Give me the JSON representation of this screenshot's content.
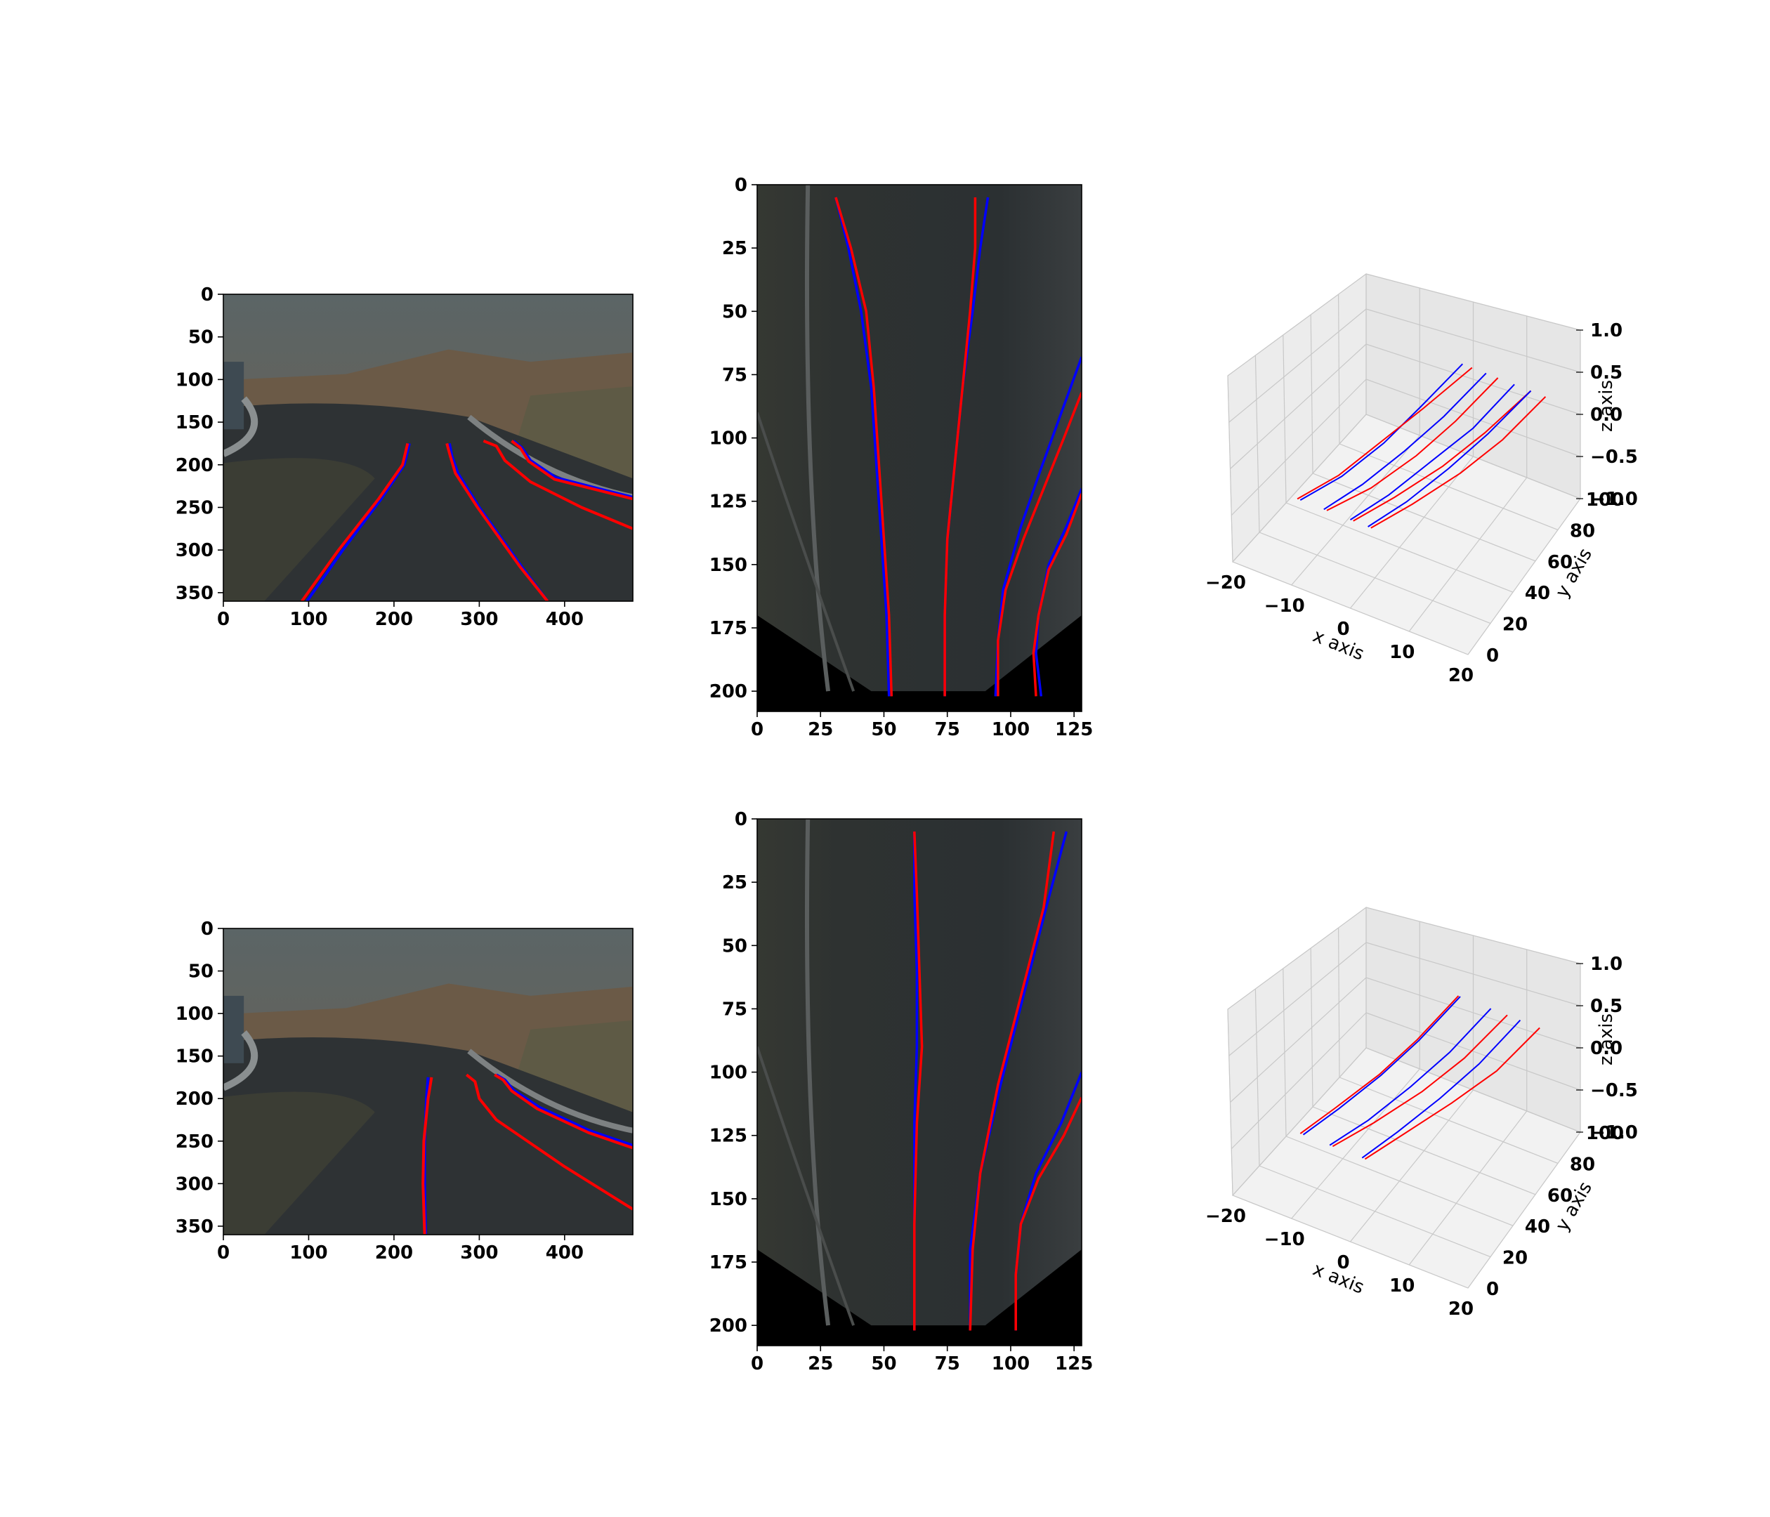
{
  "colors": {
    "gt": "#0000ff",
    "pred": "#ff0000",
    "sky_top": "#5d6766",
    "sky_bottom": "#6f5f4f",
    "mountain": "#6b5a47",
    "road": "#2e3234",
    "ground": "#3b3d34",
    "bev_bg": "#2b2f30",
    "pane": "#f2f2f2"
  },
  "chart_data": [
    {
      "type": "image",
      "panel": "row1-camera",
      "x_ticks": [
        "0",
        "100",
        "200",
        "300",
        "400"
      ],
      "y_ticks": [
        "0",
        "50",
        "100",
        "150",
        "200",
        "250",
        "300",
        "350"
      ],
      "xlim": [
        0,
        480
      ],
      "ylim": [
        360,
        0
      ],
      "series": [
        {
          "name": "",
          "color": "gt",
          "x": [
            98,
            140,
            185,
            212,
            218
          ],
          "y": [
            360,
            300,
            240,
            200,
            175
          ]
        },
        {
          "name": "",
          "color": "pred",
          "x": [
            92,
            135,
            182,
            210,
            216
          ],
          "y": [
            360,
            300,
            240,
            200,
            175
          ]
        },
        {
          "name": "",
          "color": "gt",
          "x": [
            265,
            268,
            275,
            300,
            350,
            380
          ],
          "y": [
            175,
            190,
            210,
            250,
            320,
            360
          ]
        },
        {
          "name": "",
          "color": "pred",
          "x": [
            262,
            266,
            272,
            298,
            348,
            380
          ],
          "y": [
            175,
            190,
            210,
            250,
            320,
            360
          ]
        },
        {
          "name": "",
          "color": "pred",
          "x": [
            305,
            320,
            330,
            360,
            420,
            480
          ],
          "y": [
            172,
            178,
            195,
            220,
            250,
            275
          ]
        },
        {
          "name": "",
          "color": "gt",
          "x": [
            340,
            350,
            360,
            390,
            440,
            480
          ],
          "y": [
            172,
            180,
            195,
            215,
            228,
            238
          ]
        },
        {
          "name": "",
          "color": "pred",
          "x": [
            338,
            348,
            358,
            388,
            440,
            480
          ],
          "y": [
            172,
            180,
            196,
            217,
            230,
            240
          ]
        }
      ]
    },
    {
      "type": "image",
      "panel": "row1-bev",
      "x_ticks": [
        "0",
        "25",
        "50",
        "75",
        "100",
        "125"
      ],
      "y_ticks": [
        "0",
        "25",
        "50",
        "75",
        "100",
        "125",
        "150",
        "175",
        "200"
      ],
      "xlim": [
        0,
        128
      ],
      "ylim": [
        208,
        0
      ],
      "series": [
        {
          "name": "",
          "color": "gt",
          "x": [
            31,
            36,
            41,
            45,
            47,
            49,
            51,
            52
          ],
          "y": [
            5,
            25,
            50,
            80,
            110,
            140,
            170,
            202
          ]
        },
        {
          "name": "",
          "color": "pred",
          "x": [
            31,
            37,
            43,
            46,
            48,
            50,
            52,
            53
          ],
          "y": [
            5,
            25,
            50,
            80,
            110,
            140,
            170,
            202
          ]
        },
        {
          "name": "",
          "color": "gt",
          "x": [
            91,
            88,
            85,
            81,
            78,
            75,
            74,
            74
          ],
          "y": [
            5,
            25,
            50,
            80,
            110,
            140,
            170,
            202
          ]
        },
        {
          "name": "",
          "color": "pred",
          "x": [
            86,
            86,
            84,
            81,
            78,
            75,
            74,
            74
          ],
          "y": [
            5,
            25,
            50,
            80,
            110,
            140,
            170,
            202
          ]
        },
        {
          "name": "",
          "color": "gt",
          "x": [
            128,
            120,
            112,
            104,
            97,
            95,
            94
          ],
          "y": [
            68,
            90,
            112,
            135,
            160,
            180,
            202
          ]
        },
        {
          "name": "",
          "color": "pred",
          "x": [
            128,
            121,
            113,
            105,
            98,
            95,
            95
          ],
          "y": [
            82,
            100,
            120,
            140,
            160,
            180,
            202
          ]
        },
        {
          "name": "",
          "color": "gt",
          "x": [
            128,
            122,
            115,
            111,
            110,
            112
          ],
          "y": [
            120,
            135,
            150,
            170,
            185,
            202
          ]
        },
        {
          "name": "",
          "color": "pred",
          "x": [
            128,
            122,
            115,
            111,
            109,
            110
          ],
          "y": [
            122,
            138,
            152,
            170,
            185,
            202
          ]
        }
      ]
    },
    {
      "type": "line3d",
      "panel": "row1-3d",
      "x_ticks": [
        "−20",
        "−10",
        "0",
        "10",
        "20"
      ],
      "y_ticks": [
        "0",
        "20",
        "40",
        "60",
        "80",
        "100"
      ],
      "z_ticks": [
        "−1.0",
        "−0.5",
        "0.0",
        "0.5",
        "1.0"
      ],
      "xlabel": "x axis",
      "ylabel": "y axis",
      "zlabel": "z axis",
      "xlim": [
        -20,
        20
      ],
      "ylim": [
        0,
        100
      ],
      "zlim": [
        -1,
        1
      ],
      "series": [
        {
          "name": "",
          "color": "gt",
          "x": [
            -8.5,
            -6,
            -4.5,
            -4,
            -3.6
          ],
          "y": [
            0,
            20,
            45,
            70,
            100
          ],
          "z": [
            0,
            0,
            0,
            0,
            0
          ]
        },
        {
          "name": "",
          "color": "pred",
          "x": [
            -9,
            -6.5,
            -5,
            -3.5,
            -2
          ],
          "y": [
            0,
            20,
            45,
            70,
            100
          ],
          "z": [
            0,
            0,
            0,
            0,
            0
          ]
        },
        {
          "name": "",
          "color": "gt",
          "x": [
            -4.5,
            -2.5,
            -1,
            0,
            0.4
          ],
          "y": [
            0,
            20,
            45,
            70,
            100
          ],
          "z": [
            0,
            0,
            0,
            0,
            0
          ]
        },
        {
          "name": "",
          "color": "pred",
          "x": [
            -4,
            -1,
            1,
            2,
            2.4
          ],
          "y": [
            0,
            20,
            45,
            70,
            100
          ],
          "z": [
            0,
            0,
            0,
            0,
            0
          ]
        },
        {
          "name": "",
          "color": "gt",
          "x": [
            0,
            2,
            3.5,
            5,
            5.2
          ],
          "y": [
            0,
            20,
            45,
            70,
            100
          ],
          "z": [
            0,
            0,
            0,
            0,
            0
          ]
        },
        {
          "name": "",
          "color": "pred",
          "x": [
            0.5,
            3,
            5.5,
            7,
            8
          ],
          "y": [
            0,
            20,
            45,
            70,
            100
          ],
          "z": [
            0,
            0,
            0,
            0,
            0
          ]
        },
        {
          "name": "",
          "color": "gt",
          "x": [
            3,
            5,
            6.5,
            7.5,
            8
          ],
          "y": [
            0,
            20,
            45,
            70,
            100
          ],
          "z": [
            0,
            0,
            0,
            0,
            0
          ]
        },
        {
          "name": "",
          "color": "pred",
          "x": [
            3.5,
            6,
            8.5,
            10,
            10.5
          ],
          "y": [
            0,
            20,
            45,
            70,
            100
          ],
          "z": [
            0,
            0,
            0,
            0,
            0
          ]
        }
      ]
    },
    {
      "type": "image",
      "panel": "row2-camera",
      "x_ticks": [
        "0",
        "100",
        "200",
        "300",
        "400"
      ],
      "y_ticks": [
        "0",
        "50",
        "100",
        "150",
        "200",
        "250",
        "300",
        "350"
      ],
      "xlim": [
        0,
        480
      ],
      "ylim": [
        360,
        0
      ],
      "series": [
        {
          "name": "",
          "color": "gt",
          "x": [
            240,
            238,
            236,
            236,
            237
          ],
          "y": [
            175,
            200,
            250,
            300,
            360
          ]
        },
        {
          "name": "",
          "color": "pred",
          "x": [
            244,
            240,
            235,
            234,
            236
          ],
          "y": [
            175,
            200,
            250,
            300,
            360
          ]
        },
        {
          "name": "",
          "color": "pred",
          "x": [
            285,
            295,
            300,
            320,
            400,
            480
          ],
          "y": [
            172,
            180,
            200,
            225,
            280,
            330
          ]
        },
        {
          "name": "",
          "color": "gt",
          "x": [
            320,
            330,
            340,
            370,
            430,
            480
          ],
          "y": [
            172,
            178,
            190,
            210,
            238,
            255
          ]
        },
        {
          "name": "",
          "color": "pred",
          "x": [
            318,
            328,
            338,
            368,
            428,
            480
          ],
          "y": [
            172,
            178,
            191,
            212,
            240,
            258
          ]
        }
      ]
    },
    {
      "type": "image",
      "panel": "row2-bev",
      "x_ticks": [
        "0",
        "25",
        "50",
        "75",
        "100",
        "125"
      ],
      "y_ticks": [
        "0",
        "25",
        "50",
        "75",
        "100",
        "125",
        "150",
        "175",
        "200"
      ],
      "xlim": [
        0,
        128
      ],
      "ylim": [
        208,
        0
      ],
      "series": [
        {
          "name": "",
          "color": "gt",
          "x": [
            62,
            62,
            63,
            63,
            62,
            62,
            62
          ],
          "y": [
            5,
            30,
            60,
            90,
            120,
            160,
            202
          ]
        },
        {
          "name": "",
          "color": "pred",
          "x": [
            62,
            63,
            64,
            65,
            63,
            62,
            62
          ],
          "y": [
            5,
            30,
            60,
            90,
            120,
            160,
            202
          ]
        },
        {
          "name": "",
          "color": "gt",
          "x": [
            122,
            114,
            105,
            96,
            88,
            84,
            84
          ],
          "y": [
            5,
            35,
            70,
            105,
            140,
            170,
            202
          ]
        },
        {
          "name": "",
          "color": "pred",
          "x": [
            117,
            113,
            104,
            95,
            88,
            85,
            84
          ],
          "y": [
            5,
            35,
            70,
            105,
            140,
            170,
            202
          ]
        },
        {
          "name": "",
          "color": "gt",
          "x": [
            128,
            120,
            110,
            104,
            102,
            102
          ],
          "y": [
            100,
            120,
            140,
            160,
            180,
            202
          ]
        },
        {
          "name": "",
          "color": "pred",
          "x": [
            128,
            121,
            111,
            104,
            102,
            102
          ],
          "y": [
            110,
            125,
            142,
            160,
            180,
            202
          ]
        }
      ]
    },
    {
      "type": "line3d",
      "panel": "row2-3d",
      "x_ticks": [
        "−20",
        "−10",
        "0",
        "10",
        "20"
      ],
      "y_ticks": [
        "0",
        "20",
        "40",
        "60",
        "80",
        "100"
      ],
      "z_ticks": [
        "−1.0",
        "−0.5",
        "0.0",
        "0.5",
        "1.0"
      ],
      "xlabel": "x axis",
      "ylabel": "y axis",
      "zlabel": "z axis",
      "xlim": [
        -20,
        20
      ],
      "ylim": [
        0,
        100
      ],
      "zlim": [
        -1,
        1
      ],
      "series": [
        {
          "name": "",
          "color": "gt",
          "x": [
            -8,
            -6.5,
            -5,
            -4.2,
            -4
          ],
          "y": [
            0,
            20,
            45,
            70,
            100
          ],
          "z": [
            0,
            0,
            0,
            0,
            0
          ]
        },
        {
          "name": "",
          "color": "pred",
          "x": [
            -8.5,
            -7,
            -5.3,
            -4.5,
            -4.3
          ],
          "y": [
            0,
            20,
            45,
            70,
            100
          ],
          "z": [
            0,
            0,
            0,
            0,
            0
          ]
        },
        {
          "name": "",
          "color": "gt",
          "x": [
            -3.5,
            -1.5,
            0,
            1,
            1.2
          ],
          "y": [
            0,
            20,
            45,
            70,
            100
          ],
          "z": [
            0,
            0,
            0,
            0,
            0
          ]
        },
        {
          "name": "",
          "color": "pred",
          "x": [
            -3,
            -0.5,
            2,
            3.5,
            4
          ],
          "y": [
            0,
            20,
            45,
            70,
            100
          ],
          "z": [
            0,
            0,
            0,
            0,
            0
          ]
        },
        {
          "name": "",
          "color": "gt",
          "x": [
            2,
            3.5,
            5,
            6,
            6.2
          ],
          "y": [
            0,
            20,
            45,
            70,
            100
          ],
          "z": [
            0,
            0,
            0,
            0,
            0
          ]
        },
        {
          "name": "",
          "color": "pred",
          "x": [
            2.5,
            4.5,
            7,
            9,
            9.5
          ],
          "y": [
            0,
            20,
            45,
            70,
            100
          ],
          "z": [
            0,
            0,
            0,
            0,
            0
          ]
        }
      ]
    }
  ]
}
